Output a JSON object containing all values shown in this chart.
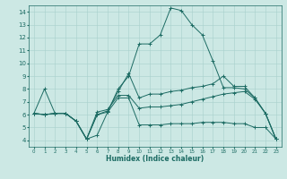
{
  "xlabel": "Humidex (Indice chaleur)",
  "xlim": [
    -0.5,
    23.5
  ],
  "ylim": [
    3.5,
    14.5
  ],
  "xticks": [
    0,
    1,
    2,
    3,
    4,
    5,
    6,
    7,
    8,
    9,
    10,
    11,
    12,
    13,
    14,
    15,
    16,
    17,
    18,
    19,
    20,
    21,
    22,
    23
  ],
  "yticks": [
    4,
    5,
    6,
    7,
    8,
    9,
    10,
    11,
    12,
    13,
    14
  ],
  "bg_color": "#cce8e4",
  "line_color": "#1c6b63",
  "grid_color": "#a8d0cc",
  "lines": [
    [
      6.1,
      6.0,
      6.1,
      6.1,
      5.5,
      4.1,
      4.4,
      6.2,
      8.0,
      9.0,
      11.5,
      11.5,
      12.2,
      14.3,
      14.1,
      13.0,
      12.2,
      10.2,
      8.1,
      8.1,
      8.0,
      7.3,
      6.1,
      4.1
    ],
    [
      6.1,
      8.0,
      6.1,
      6.1,
      5.5,
      4.1,
      6.0,
      6.3,
      7.8,
      9.2,
      7.3,
      7.6,
      7.6,
      7.8,
      7.9,
      8.1,
      8.2,
      8.4,
      9.0,
      8.2,
      8.2,
      7.3,
      6.1,
      4.1
    ],
    [
      6.1,
      6.0,
      6.1,
      6.1,
      5.5,
      4.1,
      6.2,
      6.4,
      7.5,
      7.5,
      6.5,
      6.6,
      6.6,
      6.7,
      6.8,
      7.0,
      7.2,
      7.4,
      7.6,
      7.7,
      7.8,
      7.2,
      6.1,
      4.1
    ],
    [
      6.1,
      6.0,
      6.1,
      6.1,
      5.5,
      4.1,
      6.0,
      6.2,
      7.3,
      7.3,
      5.2,
      5.2,
      5.2,
      5.3,
      5.3,
      5.3,
      5.4,
      5.4,
      5.4,
      5.3,
      5.3,
      5.0,
      5.0,
      4.1
    ]
  ]
}
